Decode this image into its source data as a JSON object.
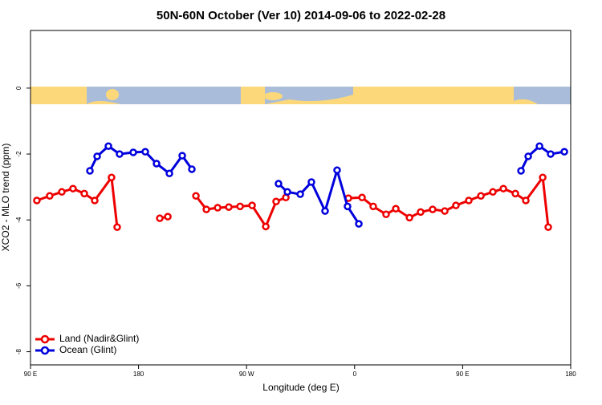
{
  "chart_data": {
    "type": "line",
    "title": "50N-60N October (Ver 10)   2014-09-06 to 2022-02-28",
    "x_label": "Longitude (deg E)",
    "y_label": "XCO2 - MLO trend (ppm)",
    "xlim": [
      90,
      540
    ],
    "xticks": [
      {
        "value": 90,
        "label": "90 E"
      },
      180,
      {
        "value": 270,
        "label": "90 W"
      },
      {
        "value": 360,
        "label": "0"
      },
      {
        "value": 450,
        "label": "90 E"
      },
      {
        "value": 540,
        "label": "180"
      }
    ],
    "ylim": [
      -8.4,
      1.75
    ],
    "yticks": [
      0,
      -2,
      -4,
      -6,
      -8
    ],
    "legend": "bottom-left",
    "series": [
      {
        "name": "Land (Nadir&Glint)",
        "color": "#ee0000",
        "x": [
          95.3,
          106,
          116.1,
          125.4,
          134.8,
          143.5,
          157.5,
          162.2,
          null,
          197.7,
          204.4,
          null,
          227.8,
          236.5,
          245.9,
          255.2,
          264.6,
          274.6,
          286,
          294.6,
          302.7,
          null,
          354.8,
          366.2,
          375.5,
          386.2,
          394.3,
          405.7,
          415,
          425,
          435.1,
          444.4,
          455.1,
          465.2,
          475.2,
          483.9,
          493.9,
          502.6,
          516.7,
          521.3
        ],
        "values": [
          -3.41,
          -3.27,
          -3.15,
          -3.05,
          -3.2,
          -3.41,
          -2.71,
          -4.22,
          null,
          -3.95,
          -3.9,
          null,
          -3.27,
          -3.68,
          -3.63,
          -3.61,
          -3.59,
          -3.56,
          -4.2,
          -3.44,
          -3.32,
          null,
          -3.34,
          -3.32,
          -3.59,
          -3.83,
          -3.66,
          -3.93,
          -3.76,
          -3.68,
          -3.73,
          -3.56,
          -3.41,
          -3.27,
          -3.15,
          -3.05,
          -3.2,
          -3.41,
          -2.71,
          -4.22
        ]
      },
      {
        "name": "Ocean (Glint)",
        "color": "#0000dd",
        "x": [
          139.5,
          145.5,
          154.9,
          164.2,
          175.6,
          185.6,
          195,
          205.7,
          216.4,
          224.4,
          null,
          296.6,
          304,
          314.7,
          324,
          335.4,
          345.4,
          354.1,
          363.5,
          null,
          498.6,
          504.6,
          514,
          523.3,
          534.7
        ],
        "values": [
          -2.51,
          -2.07,
          -1.76,
          -2,
          -1.95,
          -1.93,
          -2.29,
          -2.59,
          -2.05,
          -2.46,
          null,
          -2.9,
          -3.15,
          -3.22,
          -2.85,
          -3.73,
          -2.49,
          -3.59,
          -4.12,
          null,
          -2.51,
          -2.07,
          -1.76,
          -2,
          -1.93
        ]
      }
    ]
  }
}
